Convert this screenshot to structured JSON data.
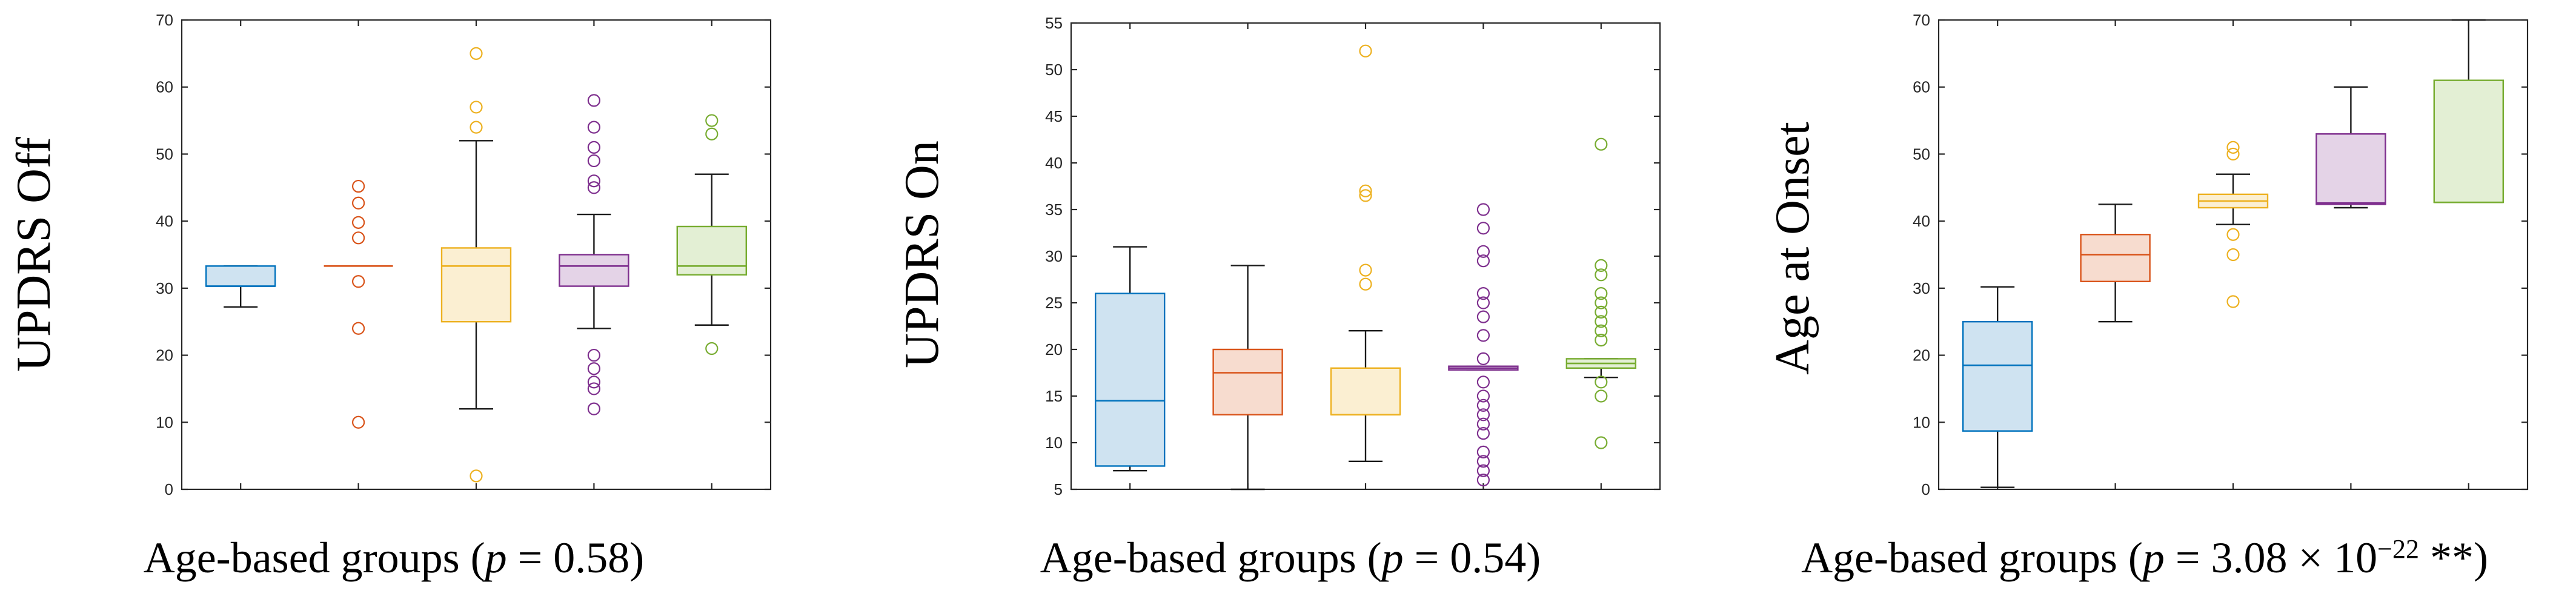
{
  "chart_data": [
    {
      "type": "boxplot",
      "ylabel": "UPDRS Off",
      "xlabel": {
        "prefix": "Age-based groups (",
        "p_symbol": "p",
        "p_value": " = 0.58",
        "suffix": ")"
      },
      "ylim": [
        0,
        70
      ],
      "yticks": [
        0,
        10,
        20,
        30,
        40,
        50,
        60,
        70
      ],
      "boxes": [
        {
          "color": "#0072BD",
          "fill": "#cfe3f1",
          "q1": 30.3,
          "median": 30.3,
          "q3": 33.3,
          "whisker_low": 27.2,
          "whisker_high": 33.3,
          "outliers": []
        },
        {
          "color": "#D95319",
          "fill": "#f7dccf",
          "q1": 33.3,
          "median": 33.3,
          "q3": 33.3,
          "whisker_low": 33.3,
          "whisker_high": 33.3,
          "outliers": [
            45.2,
            42.7,
            39.8,
            37.5,
            31.0,
            24.0,
            10.0
          ]
        },
        {
          "color": "#EDB120",
          "fill": "#fbefd2",
          "q1": 25.0,
          "median": 33.3,
          "q3": 36.0,
          "whisker_low": 12.0,
          "whisker_high": 52.0,
          "outliers": [
            65.0,
            57.0,
            54.0,
            2.0
          ]
        },
        {
          "color": "#7E2F8E",
          "fill": "#e4d3e7",
          "q1": 30.3,
          "median": 33.3,
          "q3": 35.0,
          "whisker_low": 24.0,
          "whisker_high": 41.0,
          "outliers": [
            58.0,
            54.0,
            51.0,
            49.0,
            46.0,
            45.0,
            20.0,
            18.0,
            16.0,
            15.0,
            12.0
          ]
        },
        {
          "color": "#77AC30",
          "fill": "#e3efd4",
          "q1": 32.0,
          "median": 33.3,
          "q3": 39.2,
          "whisker_low": 24.5,
          "whisker_high": 47.0,
          "outliers": [
            55.0,
            53.0,
            21.0
          ]
        }
      ]
    },
    {
      "type": "boxplot",
      "ylabel": "UPDRS On",
      "xlabel": {
        "prefix": "Age-based groups (",
        "p_symbol": "p",
        "p_value": " = 0.54",
        "suffix": ")"
      },
      "ylim": [
        5,
        55
      ],
      "yticks": [
        5,
        10,
        15,
        20,
        25,
        30,
        35,
        40,
        45,
        50,
        55
      ],
      "boxes": [
        {
          "color": "#0072BD",
          "fill": "#cfe3f1",
          "q1": 7.5,
          "median": 14.5,
          "q3": 26.0,
          "whisker_low": 7.0,
          "whisker_high": 31.0,
          "outliers": []
        },
        {
          "color": "#D95319",
          "fill": "#f7dccf",
          "q1": 13.0,
          "median": 17.5,
          "q3": 20.0,
          "whisker_low": 5.0,
          "whisker_high": 29.0,
          "outliers": []
        },
        {
          "color": "#EDB120",
          "fill": "#fbefd2",
          "q1": 13.0,
          "median": 13.0,
          "q3": 18.0,
          "whisker_low": 8.0,
          "whisker_high": 22.0,
          "outliers": [
            52.0,
            37.0,
            36.5,
            28.5,
            27.0
          ]
        },
        {
          "color": "#7E2F8E",
          "fill": "#e4d3e7",
          "q1": 17.8,
          "median": 18.0,
          "q3": 18.2,
          "whisker_low": 17.8,
          "whisker_high": 18.2,
          "outliers": [
            35.0,
            33.0,
            30.5,
            29.5,
            26.0,
            25.0,
            23.5,
            21.5,
            19.0,
            16.5,
            15.0,
            14.0,
            13.0,
            12.0,
            11.0,
            9.0,
            8.0,
            7.0,
            6.0
          ]
        },
        {
          "color": "#77AC30",
          "fill": "#e3efd4",
          "q1": 18.0,
          "median": 18.5,
          "q3": 19.0,
          "whisker_low": 17.0,
          "whisker_high": 19.0,
          "outliers": [
            42.0,
            29.0,
            28.0,
            26.0,
            25.0,
            24.0,
            23.0,
            22.0,
            21.0,
            16.5,
            15.0,
            10.0
          ]
        }
      ]
    },
    {
      "type": "boxplot",
      "ylabel": "Age at Onset",
      "xlabel": {
        "prefix": "Age-based groups (",
        "p_symbol": "p",
        "p_value": " = 3.08 × 10",
        "exponent": "−22",
        "suffix": " **)"
      },
      "ylim": [
        0,
        70
      ],
      "yticks": [
        0,
        10,
        20,
        30,
        40,
        50,
        60,
        70
      ],
      "boxes": [
        {
          "color": "#0072BD",
          "fill": "#cfe3f1",
          "q1": 8.7,
          "median": 18.5,
          "q3": 25.0,
          "whisker_low": 0.3,
          "whisker_high": 30.2,
          "outliers": []
        },
        {
          "color": "#D95319",
          "fill": "#f7dccf",
          "q1": 31.0,
          "median": 35.0,
          "q3": 38.0,
          "whisker_low": 25.0,
          "whisker_high": 42.5,
          "outliers": []
        },
        {
          "color": "#EDB120",
          "fill": "#fbefd2",
          "q1": 42.0,
          "median": 43.0,
          "q3": 44.0,
          "whisker_low": 39.5,
          "whisker_high": 47.0,
          "outliers": [
            51.0,
            50.0,
            38.0,
            35.0,
            28.0
          ]
        },
        {
          "color": "#7E2F8E",
          "fill": "#e4d3e7",
          "q1": 42.5,
          "median": 42.7,
          "q3": 53.0,
          "whisker_low": 42.0,
          "whisker_high": 60.0,
          "outliers": []
        },
        {
          "color": "#77AC30",
          "fill": "#e3efd4",
          "q1": 42.8,
          "median": 42.8,
          "q3": 61.0,
          "whisker_low": 42.8,
          "whisker_high": 70.0,
          "outliers": []
        }
      ]
    }
  ]
}
